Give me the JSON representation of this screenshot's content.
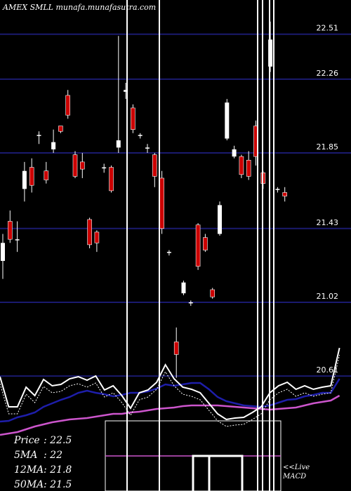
{
  "chart_data": {
    "type": "candlestick",
    "title": "AMEX SMLL munafa.munafasutra.com",
    "y_ticks": [
      22.51,
      22.26,
      21.85,
      21.43,
      21.02,
      20.61
    ],
    "ylim": [
      20.4,
      22.7
    ],
    "grid": true,
    "colors": {
      "background": "#000000",
      "grid": "#1a1a6e",
      "up": "#ffffff",
      "down": "#cc0000",
      "wick": "#ffffff",
      "ma_short": "#ffffff",
      "ma_mid": "#1e1eaa",
      "ma_long": "#cc55cc"
    },
    "candles": [
      {
        "o": 21.25,
        "c": 21.35,
        "h": 21.4,
        "l": 21.15
      },
      {
        "o": 21.47,
        "c": 21.37,
        "h": 21.53,
        "l": 21.35
      },
      {
        "o": 21.37,
        "c": 21.37,
        "h": 21.47,
        "l": 21.3
      },
      {
        "o": 21.65,
        "c": 21.75,
        "h": 21.8,
        "l": 21.58
      },
      {
        "o": 21.77,
        "c": 21.67,
        "h": 21.82,
        "l": 21.63
      },
      {
        "o": 21.95,
        "c": 21.95,
        "h": 21.97,
        "l": 21.9
      },
      {
        "o": 21.75,
        "c": 21.7,
        "h": 21.8,
        "l": 21.68
      },
      {
        "o": 21.87,
        "c": 21.91,
        "h": 21.98,
        "l": 21.85
      },
      {
        "o": 22.0,
        "c": 21.97,
        "h": 22.0,
        "l": 21.96
      },
      {
        "o": 22.17,
        "c": 22.06,
        "h": 22.2,
        "l": 22.04
      },
      {
        "o": 21.84,
        "c": 21.72,
        "h": 21.86,
        "l": 21.71
      },
      {
        "o": 21.8,
        "c": 21.76,
        "h": 21.85,
        "l": 21.71
      },
      {
        "o": 21.48,
        "c": 21.34,
        "h": 21.49,
        "l": 21.32
      },
      {
        "o": 21.41,
        "c": 21.35,
        "h": 21.42,
        "l": 21.3
      },
      {
        "o": 21.77,
        "c": 21.77,
        "h": 21.79,
        "l": 21.74
      },
      {
        "o": 21.77,
        "c": 21.64,
        "h": 21.78,
        "l": 21.63
      },
      {
        "o": 21.88,
        "c": 21.92,
        "h": 22.5,
        "l": 21.85
      },
      {
        "o": 22.19,
        "c": 22.2,
        "h": 22.24,
        "l": 22.15
      },
      {
        "o": 22.1,
        "c": 21.98,
        "h": 22.12,
        "l": 21.96
      },
      {
        "o": 21.95,
        "c": 21.95,
        "h": 21.96,
        "l": 21.93
      },
      {
        "o": 21.88,
        "c": 21.88,
        "h": 21.9,
        "l": 21.85
      },
      {
        "o": 21.84,
        "c": 21.72,
        "h": 21.85,
        "l": 21.66
      },
      {
        "o": 21.71,
        "c": 21.43,
        "h": 21.75,
        "l": 21.4
      },
      {
        "o": 21.3,
        "c": 21.3,
        "h": 21.31,
        "l": 21.28
      },
      {
        "o": 20.8,
        "c": 20.73,
        "h": 20.88,
        "l": 20.6
      },
      {
        "o": 21.07,
        "c": 21.13,
        "h": 21.14,
        "l": 21.06
      },
      {
        "o": 21.02,
        "c": 21.02,
        "h": 21.03,
        "l": 21.0
      },
      {
        "o": 21.45,
        "c": 21.22,
        "h": 21.46,
        "l": 21.2
      },
      {
        "o": 21.38,
        "c": 21.31,
        "h": 21.4,
        "l": 21.3
      },
      {
        "o": 21.09,
        "c": 21.05,
        "h": 21.1,
        "l": 21.04
      },
      {
        "o": 21.4,
        "c": 21.56,
        "h": 21.58,
        "l": 21.39
      },
      {
        "o": 21.93,
        "c": 22.13,
        "h": 22.15,
        "l": 21.92
      },
      {
        "o": 21.83,
        "c": 21.87,
        "h": 21.89,
        "l": 21.82
      },
      {
        "o": 21.83,
        "c": 21.73,
        "h": 21.84,
        "l": 21.71
      },
      {
        "o": 21.81,
        "c": 21.72,
        "h": 21.86,
        "l": 21.7
      },
      {
        "o": 22.0,
        "c": 21.83,
        "h": 22.03,
        "l": 21.78
      },
      {
        "o": 21.74,
        "c": 21.68,
        "h": 21.75,
        "l": 21.65
      },
      {
        "o": 22.33,
        "c": 22.48,
        "h": 22.58,
        "l": 22.3
      },
      {
        "o": 21.65,
        "c": 21.65,
        "h": 21.66,
        "l": 21.63
      },
      {
        "o": 21.63,
        "c": 21.61,
        "h": 21.66,
        "l": 21.58
      }
    ],
    "indicator_lines": {
      "short": [
        537,
        580,
        580,
        552,
        564,
        541,
        550,
        548,
        540,
        537,
        542,
        536,
        556,
        550,
        564,
        582,
        560,
        556,
        545,
        520,
        540,
        552,
        555,
        560,
        575,
        590,
        598,
        596,
        595,
        588,
        580,
        560,
        550,
        545,
        555,
        550,
        555,
        552,
        550,
        496
      ],
      "mid": [
        601,
        600,
        595,
        592,
        588,
        580,
        575,
        570,
        566,
        560,
        557,
        560,
        562,
        565,
        563,
        560,
        560,
        558,
        554,
        548,
        550,
        548,
        546,
        546,
        555,
        566,
        572,
        575,
        578,
        579,
        580,
        578,
        574,
        570,
        569,
        565,
        563,
        560,
        560,
        540
      ],
      "long": [
        620,
        618,
        616,
        612,
        608,
        605,
        602,
        600,
        598,
        597,
        596,
        594,
        592,
        590,
        590,
        588,
        587,
        585,
        583,
        582,
        581,
        579,
        578,
        578,
        578,
        578,
        579,
        580,
        581,
        582,
        583,
        584,
        583,
        582,
        581,
        578,
        575,
        573,
        571,
        564
      ]
    },
    "vertical_lines": [
      181,
      227,
      367,
      374,
      384,
      390
    ],
    "stats": [
      {
        "label": "Price",
        "value": "22.5"
      },
      {
        "label": "5MA",
        "value": "22"
      },
      {
        "label": "12MA",
        "value": "21.8"
      },
      {
        "label": "50MA",
        "value": "21.5"
      }
    ],
    "macd_label": "<<Live MACD",
    "macd_label_lines": [
      "<<Live",
      "MACD"
    ]
  }
}
